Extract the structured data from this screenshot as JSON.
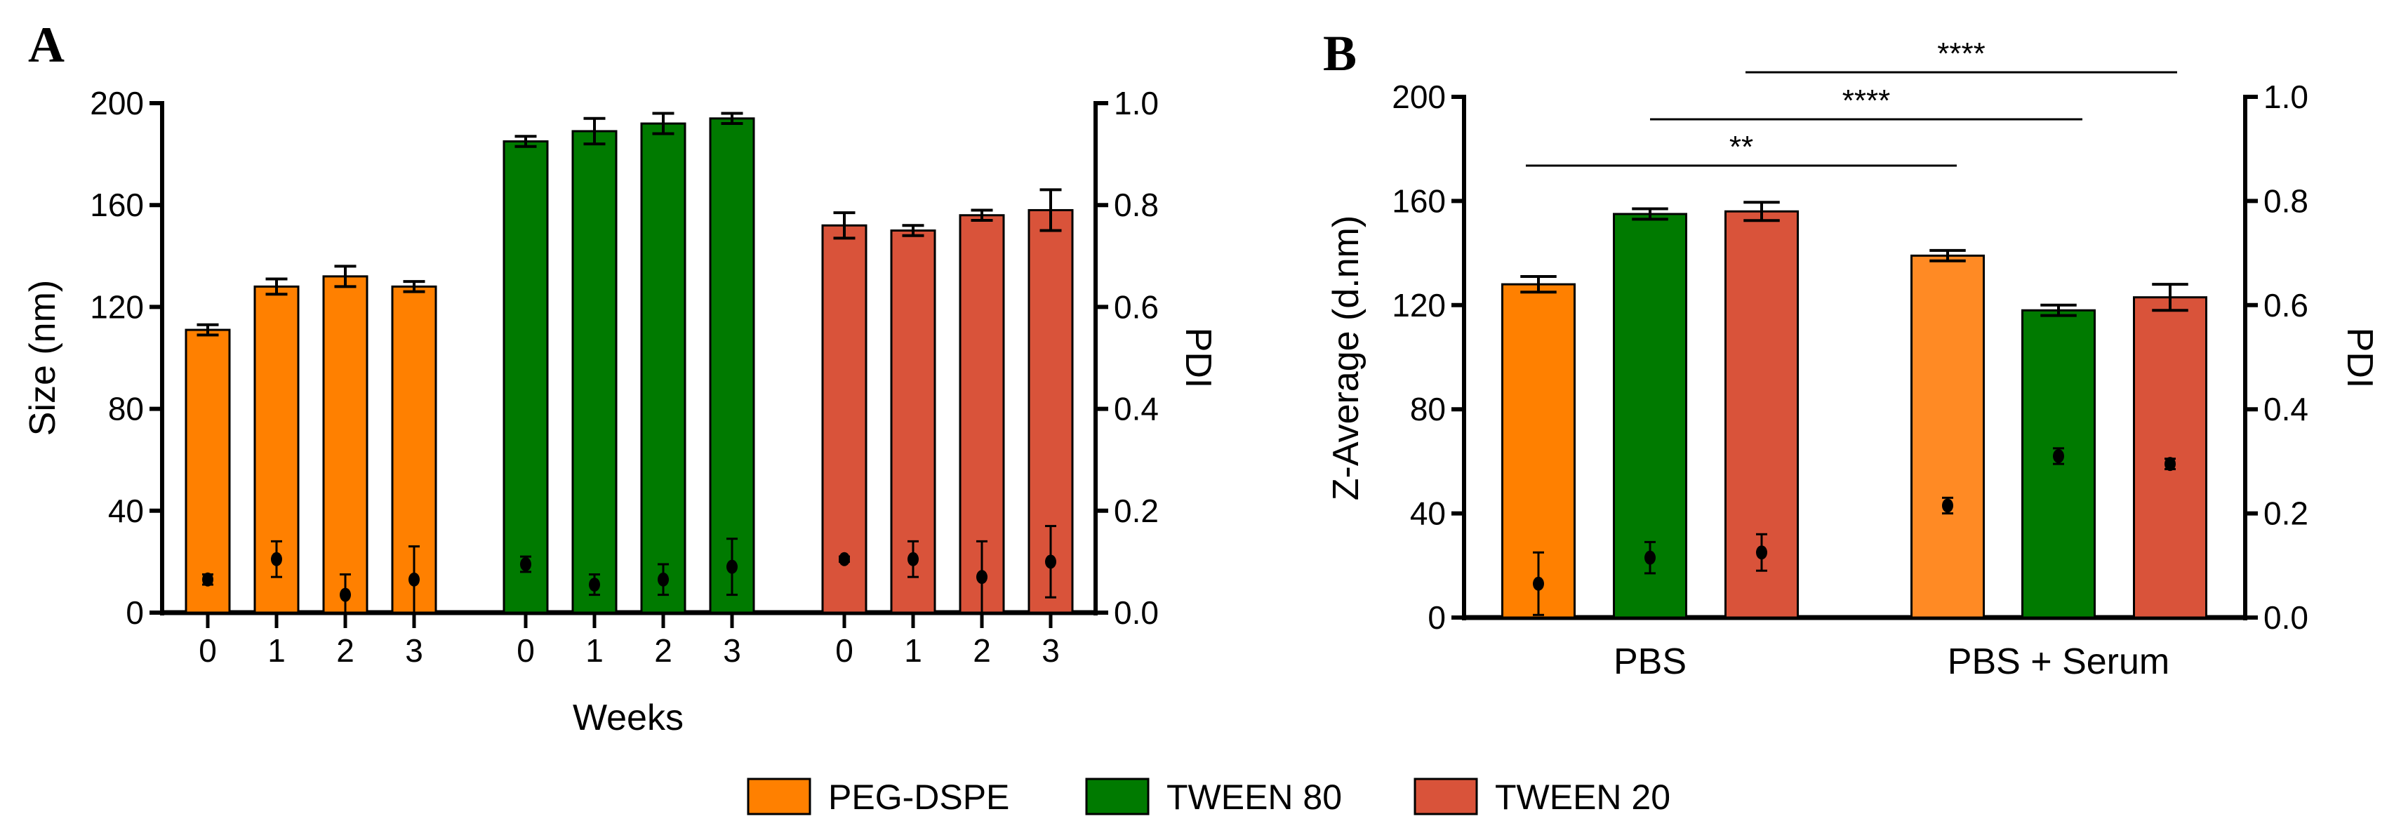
{
  "chart_data": [
    {
      "type": "bar",
      "panel_label": "A",
      "xlabel": "Weeks",
      "ylabel": "Size (nm)",
      "y2label": "PDI",
      "ylim": [
        0,
        200
      ],
      "y2lim": [
        0,
        1.0
      ],
      "yticks": [
        "0",
        "40",
        "80",
        "120",
        "160",
        "200"
      ],
      "y2ticks": [
        "0.0",
        "0.2",
        "0.4",
        "0.6",
        "0.8",
        "1.0"
      ],
      "categories": [
        "0",
        "1",
        "2",
        "3"
      ],
      "series": [
        {
          "name": "PEG-DSPE",
          "color": "#FF8000",
          "size": [
            111,
            128,
            132,
            128
          ],
          "size_err": [
            2,
            3,
            4,
            2
          ],
          "pdi": [
            0.065,
            0.105,
            0.035,
            0.065
          ],
          "pdi_err": [
            0.01,
            0.035,
            0.04,
            0.065
          ]
        },
        {
          "name": "TWEEN 80",
          "color": "#007A00",
          "size": [
            185,
            189,
            192,
            194
          ],
          "size_err": [
            2,
            5,
            4,
            2
          ],
          "pdi": [
            0.095,
            0.055,
            0.065,
            0.09
          ],
          "pdi_err": [
            0.015,
            0.02,
            0.03,
            0.055
          ]
        },
        {
          "name": "TWEEN 20",
          "color": "#D9533A",
          "size": [
            152,
            150,
            156,
            158
          ],
          "size_err": [
            5,
            2,
            2,
            8
          ],
          "pdi": [
            0.105,
            0.105,
            0.07,
            0.1
          ],
          "pdi_err": [
            0.005,
            0.035,
            0.07,
            0.07
          ]
        }
      ]
    },
    {
      "type": "bar",
      "panel_label": "B",
      "xlabel": "",
      "ylabel": "Z-Average (d.nm)",
      "y2label": "PDI",
      "ylim": [
        0,
        200
      ],
      "y2lim": [
        0,
        1.0
      ],
      "yticks": [
        "0",
        "40",
        "80",
        "120",
        "160",
        "200"
      ],
      "y2ticks": [
        "0.0",
        "0.2",
        "0.4",
        "0.6",
        "0.8",
        "1.0"
      ],
      "categories": [
        "PBS",
        "PBS + Serum"
      ],
      "series": [
        {
          "name": "PEG-DSPE",
          "color": "#FF8000",
          "color_serum": "#FF8A24",
          "size": [
            128,
            139
          ],
          "size_err": [
            3,
            2
          ],
          "pdi": [
            0.065,
            0.215
          ],
          "pdi_err": [
            0.06,
            0.015
          ]
        },
        {
          "name": "TWEEN 80",
          "color": "#007A00",
          "size": [
            155,
            118
          ],
          "size_err": [
            2,
            2
          ],
          "pdi": [
            0.115,
            0.31
          ],
          "pdi_err": [
            0.03,
            0.015
          ]
        },
        {
          "name": "TWEEN 20",
          "color": "#D9533A",
          "size": [
            156,
            123
          ],
          "size_err": [
            3.5,
            5
          ],
          "pdi": [
            0.125,
            0.295
          ],
          "pdi_err": [
            0.035,
            0.01
          ]
        }
      ],
      "significance": [
        {
          "series": "PEG-DSPE",
          "label": "**"
        },
        {
          "series": "TWEEN 80",
          "label": "****"
        },
        {
          "series": "TWEEN 20",
          "label": "****"
        }
      ]
    }
  ],
  "legend": [
    {
      "label": "PEG-DSPE",
      "color": "#FF8000"
    },
    {
      "label": "TWEEN 80",
      "color": "#007A00"
    },
    {
      "label": "TWEEN 20",
      "color": "#D9533A"
    }
  ]
}
